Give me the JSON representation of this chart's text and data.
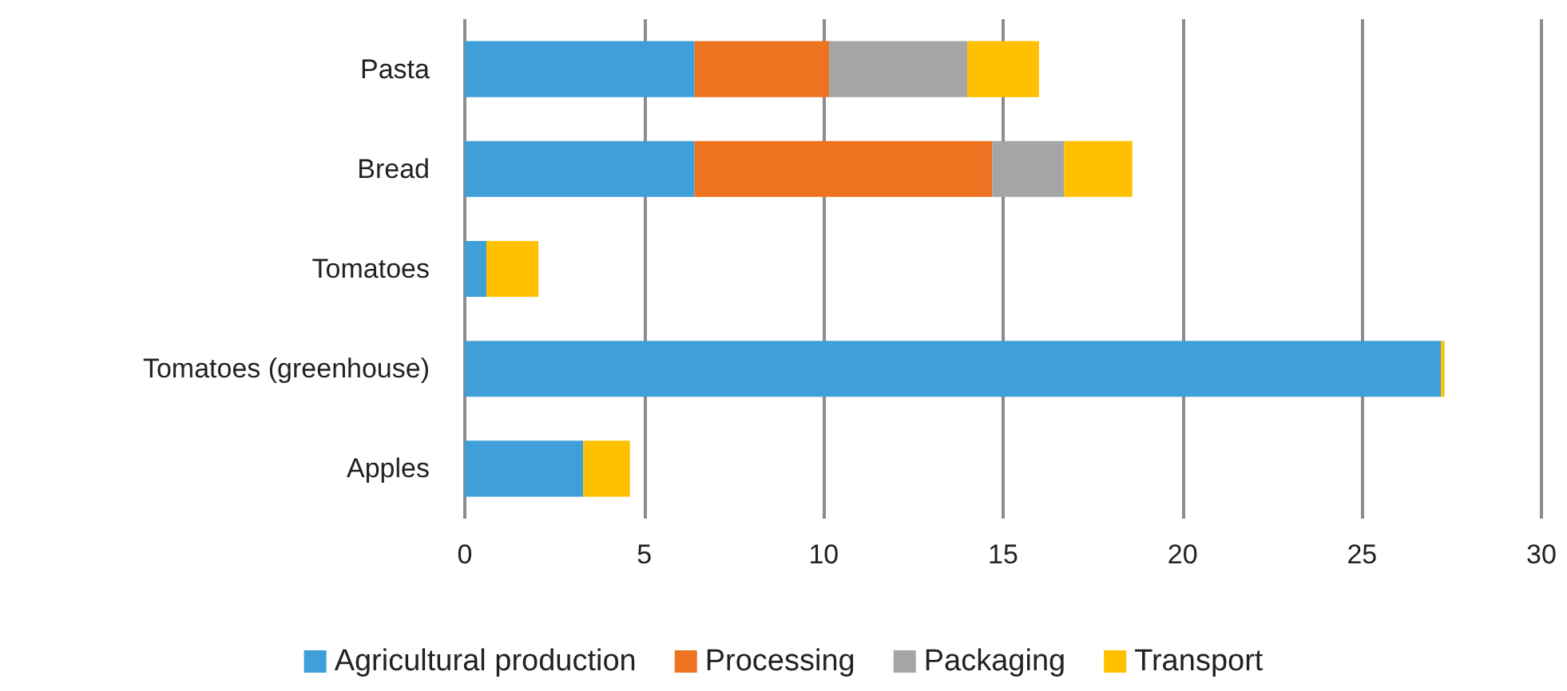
{
  "chart_data": {
    "type": "bar",
    "orientation": "horizontal",
    "stacked": true,
    "categories": [
      "Pasta",
      "Bread",
      "Tomatoes",
      "Tomatoes (greenhouse)",
      "Apples"
    ],
    "series": [
      {
        "name": "Agricultural production",
        "color": "#3f9fd8",
        "values": [
          6.4,
          6.4,
          0.6,
          27.2,
          3.3
        ]
      },
      {
        "name": "Processing",
        "color": "#ed7320",
        "values": [
          3.75,
          8.3,
          0,
          0,
          0
        ]
      },
      {
        "name": "Packaging",
        "color": "#a5a5a5",
        "values": [
          3.85,
          2.0,
          0,
          0,
          0
        ]
      },
      {
        "name": "Transport",
        "color": "#ffc000",
        "values": [
          2.0,
          1.9,
          1.45,
          0.1,
          1.3
        ]
      }
    ],
    "xlim": [
      0,
      30
    ],
    "xticks": [
      0,
      5,
      10,
      15,
      20,
      25,
      30
    ],
    "grid": "x",
    "legend": "bottom"
  }
}
